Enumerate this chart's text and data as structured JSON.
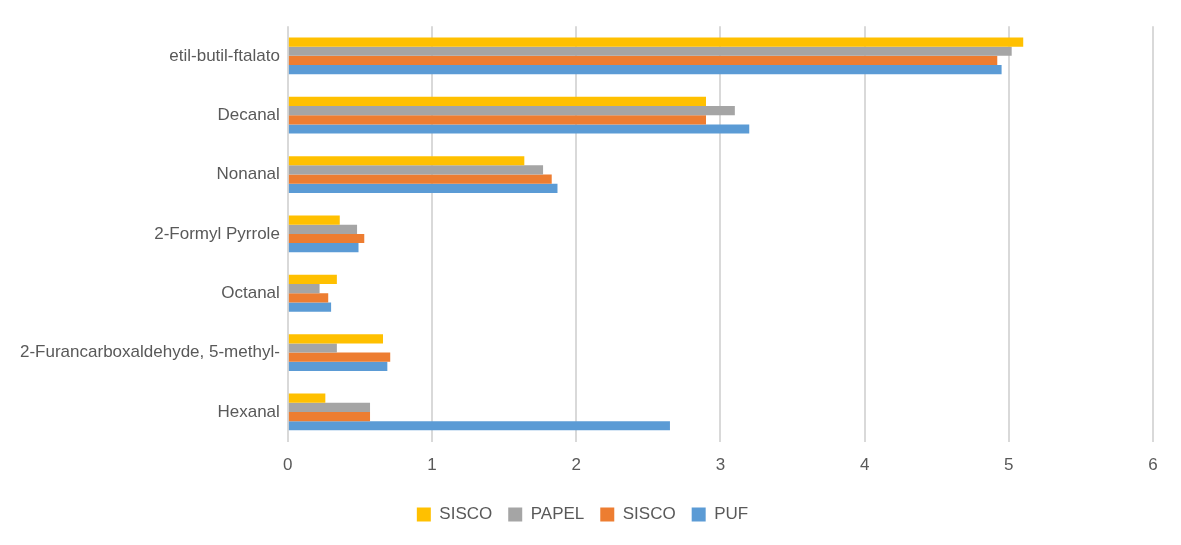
{
  "chart_data": {
    "type": "bar",
    "orientation": "horizontal",
    "categories": [
      "etil-butil-ftalato",
      "Decanal",
      "Nonanal",
      "2-Formyl Pyrrole",
      "Octanal",
      "2-Furancarboxaldehyde, 5-methyl-",
      "Hexanal"
    ],
    "series": [
      {
        "name": "SISCO",
        "color": "#ffc000",
        "values": [
          5.1,
          2.9,
          1.64,
          0.36,
          0.34,
          0.66,
          0.26
        ]
      },
      {
        "name": "PAPEL",
        "color": "#a5a5a5",
        "values": [
          5.02,
          3.1,
          1.77,
          0.48,
          0.22,
          0.34,
          0.57
        ]
      },
      {
        "name": "SISCO",
        "color": "#ed7d31",
        "values": [
          4.92,
          2.9,
          1.83,
          0.53,
          0.28,
          0.71,
          0.57
        ]
      },
      {
        "name": "PUF",
        "color": "#5b9bd5",
        "values": [
          4.95,
          3.2,
          1.87,
          0.49,
          0.3,
          0.69,
          2.65
        ]
      }
    ],
    "xlim": [
      0,
      6
    ],
    "xticks": [
      0,
      1,
      2,
      3,
      4,
      5,
      6
    ],
    "grid": "x",
    "legend": "bottom"
  }
}
